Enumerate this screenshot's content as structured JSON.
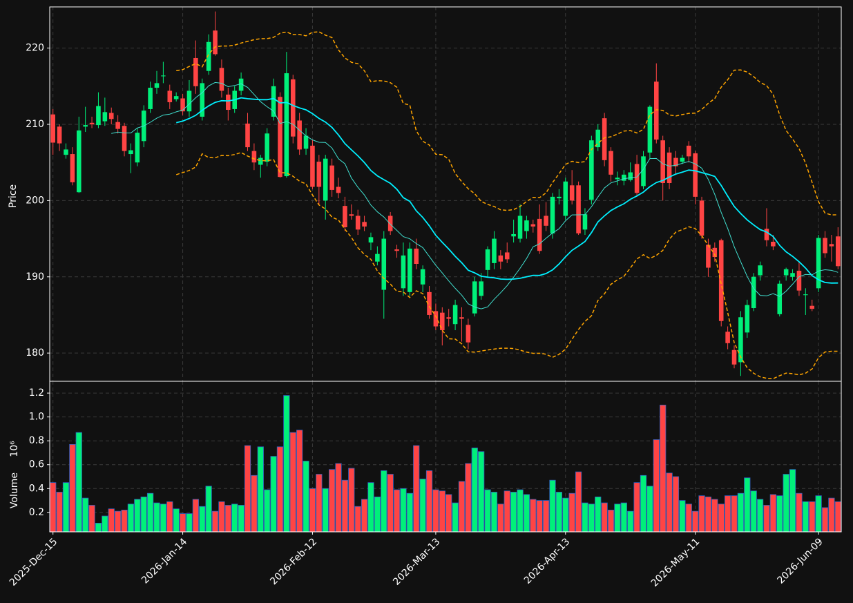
{
  "chart_data": {
    "type": "candlestick",
    "ylabel": "Price",
    "volume_ylabel": "Volume",
    "volume_offset_label": "10⁶",
    "up_color": "#00f07a",
    "down_color": "#ff4444",
    "volume_edge_color": "#3060c0",
    "mav": [
      10,
      20
    ],
    "mav_colors": [
      "#40e0d0",
      "#00f0ff"
    ],
    "bollinger": {
      "period": 20,
      "std": 2,
      "color": "#ffa500"
    },
    "grid": true,
    "ylim": [
      176.3,
      225.4
    ],
    "yticks": [
      180,
      190,
      200,
      210,
      220
    ],
    "volume_ylim": [
      0.037,
      1.299
    ],
    "volume_yticks": [
      0.2,
      0.4,
      0.6,
      0.8,
      {
        "value": 1.0,
        "label": "1.0"
      },
      1.2
    ],
    "categories": [
      "2025-Dec-15",
      null,
      null,
      null,
      null,
      null,
      null,
      null,
      null,
      null,
      null,
      null,
      null,
      null,
      null,
      null,
      null,
      null,
      null,
      null,
      "2026-Jan-14",
      null,
      null,
      null,
      null,
      null,
      null,
      null,
      null,
      null,
      null,
      null,
      null,
      null,
      null,
      null,
      null,
      null,
      null,
      null,
      "2026-Feb-12",
      null,
      null,
      null,
      null,
      null,
      null,
      null,
      null,
      null,
      null,
      null,
      null,
      null,
      null,
      null,
      null,
      null,
      null,
      "2026-Mar-13",
      null,
      null,
      null,
      null,
      null,
      null,
      null,
      null,
      null,
      null,
      null,
      null,
      null,
      null,
      null,
      null,
      null,
      null,
      null,
      "2026-Apr-13",
      null,
      null,
      null,
      null,
      null,
      null,
      null,
      null,
      null,
      null,
      null,
      null,
      null,
      null,
      null,
      null,
      null,
      null,
      null,
      "2026-May-11",
      null,
      null,
      null,
      null,
      null,
      null,
      null,
      null,
      null,
      null,
      null,
      null,
      null,
      null,
      null,
      null,
      null,
      null,
      "2026-Jun-09",
      null,
      null,
      null
    ],
    "open": [
      211.3,
      209.7,
      206.0,
      206.1,
      201.1,
      209.7,
      210.2,
      209.9,
      210.4,
      211.5,
      210.3,
      209.8,
      206.1,
      205.0,
      207.8,
      212.0,
      214.8,
      216.3,
      214.4,
      213.3,
      213.4,
      211.7,
      218.7,
      211.0,
      217.0,
      222.3,
      217.4,
      213.9,
      212.0,
      214.4,
      210.1,
      206.5,
      204.7,
      205.1,
      211.0,
      213.6,
      203.2,
      215.9,
      210.5,
      206.8,
      207.2,
      205.1,
      200.0,
      204.6,
      201.8,
      199.3,
      198.2,
      198.0,
      197.2,
      194.5,
      192.0,
      188.3,
      198.0,
      193.6,
      188.5,
      188.0,
      193.7,
      189.0,
      188.0,
      185.5,
      185.3,
      184.7,
      183.8,
      184.7,
      183.7,
      185.2,
      187.5,
      190.9,
      191.8,
      192.8,
      193.2,
      195.3,
      195.0,
      196.0,
      196.9,
      197.6,
      198.0,
      195.7,
      200.3,
      198.0,
      202.0,
      202.0,
      196.2,
      200.1,
      207.0,
      210.8,
      206.5,
      202.8,
      202.6,
      202.7,
      204.8,
      201.9,
      206.3,
      215.6,
      207.9,
      206.3,
      205.6,
      205.1,
      207.2,
      206.2,
      200.0,
      194.2,
      193.8,
      194.8,
      182.8,
      180.4,
      178.8,
      182.7,
      185.9,
      190.2,
      196.3,
      194.6,
      185.1,
      190.2,
      190.0,
      190.8,
      187.6,
      186.2,
      188.5,
      195.1,
      194.3,
      195.3
    ],
    "high": [
      212.0,
      210.0,
      207.5,
      207.0,
      211.0,
      212.3,
      211.0,
      214.2,
      213.5,
      212.2,
      211.2,
      210.2,
      207.5,
      209.5,
      212.5,
      215.6,
      217.0,
      218.2,
      215.2,
      214.2,
      214.0,
      215.8,
      221.0,
      216.0,
      221.8,
      224.8,
      218.5,
      214.8,
      215.0,
      216.8,
      211.5,
      207.5,
      206.0,
      209.5,
      216.0,
      214.2,
      219.5,
      216.5,
      211.5,
      209.5,
      208.0,
      206.0,
      206.0,
      205.5,
      203.0,
      200.5,
      199.5,
      198.8,
      198.0,
      195.8,
      194.0,
      196.0,
      198.5,
      194.2,
      194.5,
      194.5,
      195.0,
      191.5,
      188.8,
      186.5,
      186.0,
      185.8,
      187.0,
      186.0,
      184.5,
      190.0,
      190.5,
      194.0,
      196.0,
      193.5,
      194.5,
      197.5,
      199.5,
      198.0,
      197.5,
      199.5,
      199.8,
      201.0,
      201.5,
      203.0,
      204.0,
      202.5,
      199.0,
      208.5,
      210.0,
      211.5,
      207.0,
      203.8,
      204.0,
      205.0,
      206.0,
      206.5,
      212.5,
      218.0,
      208.5,
      207.0,
      206.5,
      206.0,
      207.8,
      206.5,
      200.5,
      195.0,
      194.5,
      195.0,
      183.5,
      181.0,
      185.5,
      187.0,
      190.5,
      192.0,
      199.0,
      195.5,
      189.5,
      191.2,
      191.0,
      192.0,
      188.5,
      187.0,
      195.5,
      196.0,
      195.5,
      196.5
    ],
    "low": [
      206.0,
      206.5,
      205.5,
      202.0,
      201.0,
      209.0,
      209.5,
      209.5,
      209.8,
      210.0,
      208.8,
      205.8,
      203.6,
      204.5,
      207.0,
      211.5,
      214.0,
      215.4,
      212.0,
      213.0,
      211.2,
      211.0,
      214.0,
      210.5,
      216.5,
      219.0,
      213.5,
      210.5,
      211.5,
      213.8,
      206.5,
      204.0,
      203.0,
      204.5,
      210.5,
      203.0,
      203.0,
      207.5,
      206.0,
      206.0,
      201.5,
      199.5,
      197.5,
      200.5,
      200.3,
      196.0,
      197.5,
      195.5,
      196.0,
      193.5,
      191.5,
      184.5,
      195.5,
      192.5,
      187.5,
      187.5,
      191.0,
      188.0,
      184.5,
      183.0,
      181.0,
      183.5,
      183.0,
      181.5,
      180.5,
      184.8,
      187.0,
      190.0,
      191.0,
      191.0,
      191.8,
      194.5,
      194.5,
      195.0,
      195.8,
      193.0,
      196.0,
      195.0,
      199.5,
      197.5,
      199.5,
      195.5,
      195.5,
      199.5,
      206.5,
      204.5,
      202.5,
      202.0,
      202.0,
      202.5,
      200.5,
      201.5,
      205.5,
      207.5,
      200.0,
      201.5,
      203.5,
      204.8,
      205.0,
      199.5,
      195.0,
      190.0,
      192.0,
      183.5,
      180.5,
      178.0,
      177.0,
      182.0,
      185.5,
      189.5,
      194.0,
      193.5,
      184.8,
      189.5,
      189.5,
      187.5,
      185.0,
      185.5,
      188.0,
      192.5,
      192.0,
      191.0
    ],
    "close": [
      207.6,
      207.5,
      206.7,
      202.4,
      209.2,
      209.9,
      210.0,
      212.4,
      211.6,
      210.7,
      209.4,
      206.5,
      206.6,
      208.9,
      211.8,
      214.8,
      215.4,
      216.4,
      212.9,
      213.7,
      211.7,
      214.4,
      215.0,
      215.4,
      220.8,
      219.2,
      214.4,
      211.9,
      214.4,
      216.0,
      207.0,
      205.0,
      205.6,
      208.8,
      215.0,
      203.1,
      216.7,
      208.4,
      206.7,
      208.5,
      201.8,
      201.8,
      205.5,
      201.4,
      201.0,
      196.5,
      198.0,
      196.2,
      196.6,
      195.2,
      193.0,
      195.0,
      196.0,
      193.4,
      192.8,
      193.7,
      191.7,
      191.0,
      185.0,
      183.5,
      183.0,
      184.5,
      186.3,
      184.5,
      181.4,
      189.4,
      189.4,
      193.6,
      195.0,
      192.0,
      192.3,
      195.6,
      198.0,
      197.4,
      196.6,
      193.4,
      196.7,
      200.5,
      200.5,
      202.5,
      200.0,
      195.7,
      198.2,
      207.9,
      209.3,
      205.3,
      203.4,
      203.0,
      203.4,
      203.7,
      201.0,
      205.8,
      212.3,
      208.0,
      202.3,
      202.3,
      204.5,
      205.6,
      205.8,
      200.5,
      195.4,
      191.2,
      192.6,
      184.2,
      181.3,
      178.5,
      184.7,
      186.3,
      190.0,
      191.5,
      194.8,
      194.0,
      189.1,
      191.0,
      190.5,
      188.2,
      187.7,
      185.8,
      195.1,
      193.1,
      194.0,
      191.4
    ],
    "volume": [
      0.45,
      0.37,
      0.45,
      0.77,
      0.87,
      0.32,
      0.26,
      0.11,
      0.17,
      0.23,
      0.21,
      0.22,
      0.27,
      0.31,
      0.33,
      0.36,
      0.28,
      0.27,
      0.29,
      0.23,
      0.19,
      0.19,
      0.31,
      0.25,
      0.42,
      0.21,
      0.29,
      0.26,
      0.27,
      0.26,
      0.76,
      0.51,
      0.75,
      0.39,
      0.67,
      0.75,
      1.18,
      0.87,
      0.89,
      0.63,
      0.4,
      0.52,
      0.4,
      0.56,
      0.61,
      0.47,
      0.57,
      0.25,
      0.31,
      0.45,
      0.33,
      0.55,
      0.52,
      0.39,
      0.4,
      0.36,
      0.76,
      0.48,
      0.55,
      0.39,
      0.38,
      0.35,
      0.28,
      0.46,
      0.61,
      0.74,
      0.71,
      0.39,
      0.37,
      0.27,
      0.38,
      0.37,
      0.39,
      0.35,
      0.31,
      0.3,
      0.3,
      0.47,
      0.37,
      0.32,
      0.36,
      0.54,
      0.28,
      0.27,
      0.33,
      0.28,
      0.22,
      0.27,
      0.28,
      0.21,
      0.45,
      0.51,
      0.42,
      0.81,
      1.1,
      0.53,
      0.5,
      0.3,
      0.27,
      0.21,
      0.34,
      0.33,
      0.31,
      0.27,
      0.34,
      0.34,
      0.36,
      0.49,
      0.38,
      0.31,
      0.26,
      0.35,
      0.34,
      0.52,
      0.56,
      0.36,
      0.29,
      0.29,
      0.34,
      0.24,
      0.32,
      0.29
    ]
  }
}
